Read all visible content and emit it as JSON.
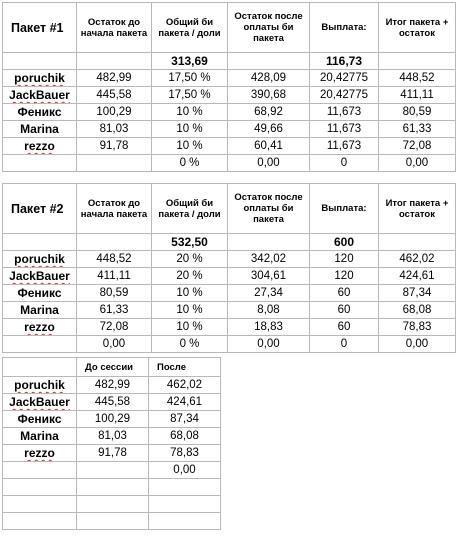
{
  "columns": {
    "remaining_start": "Остаток до начала пакета",
    "share": "Общий би пакета / доли",
    "remaining_after": "Остаток после оплаты би пакета",
    "payout": "Выплата:",
    "total": "Итог пакета + остаток"
  },
  "packet1": {
    "title": "Пакет #1",
    "total_bi": "313,69",
    "total_payout": "116,73",
    "rows": [
      {
        "name": "poruchik",
        "remaining_start": "482,99",
        "share": "17,50 %",
        "remaining_after": "428,09",
        "payout": "20,42775",
        "total": "448,52"
      },
      {
        "name": "JackBauer",
        "remaining_start": "445,58",
        "share": "17,50 %",
        "remaining_after": "390,68",
        "payout": "20,42775",
        "total": "411,11"
      },
      {
        "name": "Феникс",
        "remaining_start": "100,29",
        "share": "10 %",
        "remaining_after": "68,92",
        "payout": "11,673",
        "total": "80,59"
      },
      {
        "name": "Marina",
        "remaining_start": "81,03",
        "share": "10 %",
        "remaining_after": "49,66",
        "payout": "11,673",
        "total": "61,33"
      },
      {
        "name": "rezzo",
        "remaining_start": "91,78",
        "share": "10 %",
        "remaining_after": "60,41",
        "payout": "11,673",
        "total": "72,08"
      },
      {
        "name": "",
        "remaining_start": "",
        "share": "0 %",
        "remaining_after": "0,00",
        "payout": "0",
        "total": "0,00"
      }
    ]
  },
  "packet2": {
    "title": "Пакет #2",
    "total_bi": "532,50",
    "total_payout": "600",
    "rows": [
      {
        "name": "poruchik",
        "remaining_start": "448,52",
        "share": "20 %",
        "remaining_after": "342,02",
        "payout": "120",
        "total": "462,02"
      },
      {
        "name": "JackBauer",
        "remaining_start": "411,11",
        "share": "20 %",
        "remaining_after": "304,61",
        "payout": "120",
        "total": "424,61"
      },
      {
        "name": "Феникс",
        "remaining_start": "80,59",
        "share": "10 %",
        "remaining_after": "27,34",
        "payout": "60",
        "total": "87,34"
      },
      {
        "name": "Marina",
        "remaining_start": "61,33",
        "share": "10 %",
        "remaining_after": "8,08",
        "payout": "60",
        "total": "68,08"
      },
      {
        "name": "rezzo",
        "remaining_start": "72,08",
        "share": "10 %",
        "remaining_after": "18,83",
        "payout": "60",
        "total": "78,83"
      },
      {
        "name": "",
        "remaining_start": "0,00",
        "share": "0 %",
        "remaining_after": "0,00",
        "payout": "0",
        "total": "0,00"
      }
    ]
  },
  "summary": {
    "col_before": "До сессии",
    "col_after": "После",
    "rows": [
      {
        "name": "poruchik",
        "before": "482,99",
        "after": "462,02"
      },
      {
        "name": "JackBauer",
        "before": "445,58",
        "after": "424,61"
      },
      {
        "name": "Феникс",
        "before": "100,29",
        "after": "87,34"
      },
      {
        "name": "Marina",
        "before": "81,03",
        "after": "68,08"
      },
      {
        "name": "rezzo",
        "before": "91,78",
        "after": "78,83"
      },
      {
        "name": "",
        "before": "",
        "after": "0,00"
      },
      {
        "name": "",
        "before": "",
        "after": ""
      },
      {
        "name": "",
        "before": "",
        "after": ""
      },
      {
        "name": "",
        "before": "",
        "after": ""
      }
    ]
  },
  "colors": {
    "grid": "#b8b8b8",
    "spellcheck": "#d42a2a"
  }
}
